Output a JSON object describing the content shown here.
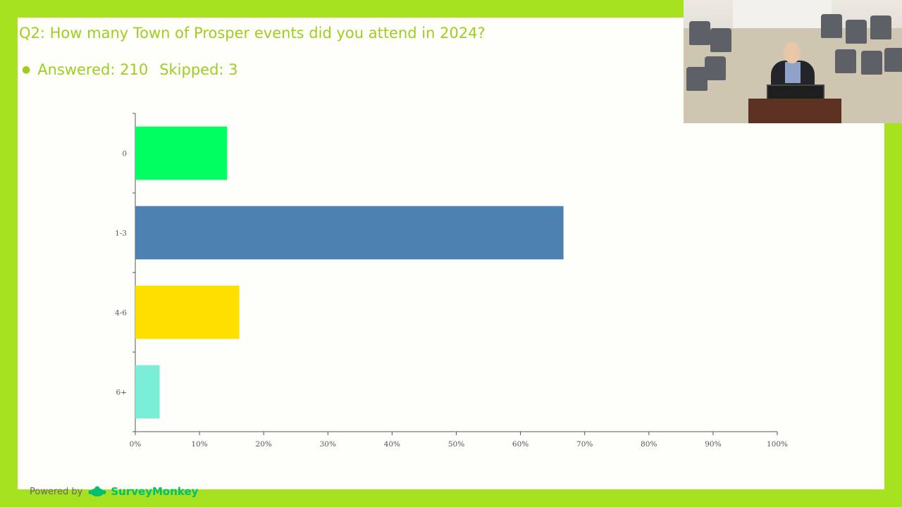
{
  "slide": {
    "title": "Q2: How many Town of Prosper events did you attend in 2024?",
    "answered_label": "Answered: 210",
    "skipped_label": "Skipped: 3",
    "footer_prefix": "Powered by",
    "footer_brand": "SurveyMonkey"
  },
  "chart_data": {
    "type": "bar",
    "orientation": "horizontal",
    "title": "",
    "categories": [
      "0",
      "1-3",
      "4-6",
      "6+"
    ],
    "values": [
      14.3,
      66.7,
      16.2,
      3.8
    ],
    "colors": [
      "#00ff60",
      "#4d81b1",
      "#ffdf00",
      "#7aedd5"
    ],
    "xlim": [
      0,
      100
    ],
    "x_ticks": [
      "0%",
      "10%",
      "20%",
      "30%",
      "40%",
      "50%",
      "60%",
      "70%",
      "80%",
      "90%",
      "100%"
    ],
    "grid": false,
    "legend": "none"
  },
  "video": {
    "icon": "webcam-feed"
  }
}
